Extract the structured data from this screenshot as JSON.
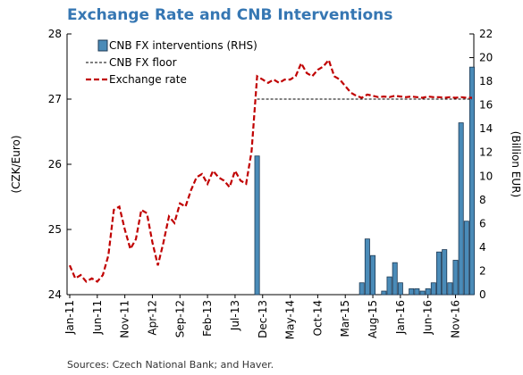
{
  "chart_data": {
    "type": "bar_line",
    "title": "Exchange Rate and CNB Interventions",
    "ylabel": "(CZK/Euro)",
    "y2label": "(Billion EUR)",
    "source": "Sources: Czech National Bank; and Haver.",
    "legend": "upper left",
    "categories": [
      "Jan-11",
      null,
      null,
      null,
      null,
      "Jun-11",
      null,
      null,
      null,
      null,
      "Nov-11",
      null,
      null,
      null,
      null,
      "Apr-12",
      null,
      null,
      null,
      null,
      "Sep-12",
      null,
      null,
      null,
      null,
      "Feb-13",
      null,
      null,
      null,
      null,
      "Jul-13",
      null,
      null,
      null,
      null,
      "Dec-13",
      null,
      null,
      null,
      null,
      "May-14",
      null,
      null,
      null,
      null,
      "Oct-14",
      null,
      null,
      null,
      null,
      "Mar-15",
      null,
      null,
      null,
      null,
      "Aug-15",
      null,
      null,
      null,
      null,
      "Jan-16",
      null,
      null,
      null,
      null,
      "Jun-16",
      null,
      null,
      null,
      null,
      "Nov-16",
      null,
      null,
      null
    ],
    "ylim": [
      24,
      28
    ],
    "yticks": [
      24,
      25,
      26,
      27,
      28
    ],
    "y2lim": [
      0,
      22
    ],
    "y2ticks": [
      0,
      2,
      4,
      6,
      8,
      10,
      12,
      14,
      16,
      18,
      20,
      22
    ],
    "series": [
      {
        "name": "CNB FX interventions (RHS)",
        "type": "bar",
        "axis": "y2",
        "color": "#4a8bb8",
        "values": [
          0,
          0,
          0,
          0,
          0,
          0,
          0,
          0,
          0,
          0,
          0,
          0,
          0,
          0,
          0,
          0,
          0,
          0,
          0,
          0,
          0,
          0,
          0,
          0,
          0,
          0,
          0,
          0,
          0,
          0,
          0,
          0,
          0,
          0,
          11.7,
          0,
          0,
          0,
          0,
          0,
          0,
          0,
          0,
          0,
          0,
          0,
          0,
          0,
          0,
          0,
          0,
          0,
          0,
          1.0,
          4.7,
          3.3,
          0,
          0.3,
          1.5,
          2.7,
          1.0,
          0,
          0.5,
          0.5,
          0.3,
          0.5,
          1.0,
          3.6,
          3.8,
          1.0,
          2.9,
          14.5,
          6.2,
          19.2
        ]
      },
      {
        "name": "CNB FX floor",
        "type": "line",
        "color": "#000000",
        "values": [
          null,
          null,
          null,
          null,
          null,
          null,
          null,
          null,
          null,
          null,
          null,
          null,
          null,
          null,
          null,
          null,
          null,
          null,
          null,
          null,
          null,
          null,
          null,
          null,
          null,
          null,
          null,
          null,
          null,
          null,
          null,
          null,
          null,
          null,
          27,
          27,
          27,
          27,
          27,
          27,
          27,
          27,
          27,
          27,
          27,
          27,
          27,
          27,
          27,
          27,
          27,
          27,
          27,
          27,
          27,
          27,
          27,
          27,
          27,
          27,
          27,
          27,
          27,
          27,
          27,
          27,
          27,
          27,
          27,
          27,
          27,
          27,
          27,
          27
        ]
      },
      {
        "name": "Exchange rate",
        "type": "line",
        "color": "#c00000",
        "values": [
          24.45,
          24.25,
          24.3,
          24.2,
          24.25,
          24.2,
          24.3,
          24.6,
          25.3,
          25.35,
          25.0,
          24.7,
          24.85,
          25.3,
          25.25,
          24.8,
          24.45,
          24.8,
          25.2,
          25.1,
          25.4,
          25.35,
          25.6,
          25.8,
          25.85,
          25.7,
          25.9,
          25.8,
          25.75,
          25.65,
          25.9,
          25.75,
          25.7,
          26.2,
          27.35,
          27.3,
          27.25,
          27.3,
          27.25,
          27.3,
          27.3,
          27.35,
          27.55,
          27.4,
          27.35,
          27.45,
          27.5,
          27.6,
          27.35,
          27.3,
          27.2,
          27.1,
          27.05,
          27.02,
          27.07,
          27.05,
          27.03,
          27.04,
          27.03,
          27.05,
          27.04,
          27.03,
          27.04,
          27.03,
          27.02,
          27.04,
          27.03,
          27.03,
          27.02,
          27.03,
          27.02,
          27.03,
          27.02,
          27.02
        ]
      }
    ]
  }
}
